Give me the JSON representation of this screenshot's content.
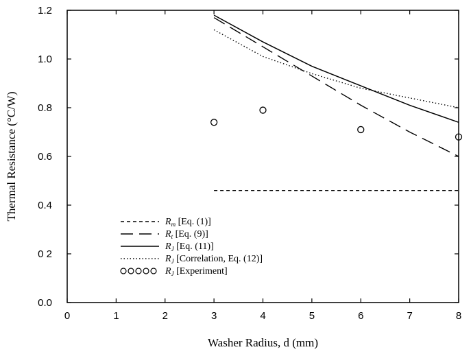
{
  "chart_data": {
    "type": "line",
    "title": "",
    "xlabel": "Washer Radius, d (mm)",
    "ylabel": "Thermal Resistance (°C/W)",
    "xlim": [
      0,
      8
    ],
    "ylim": [
      0,
      1.2
    ],
    "xticks": [
      0,
      1,
      2,
      3,
      4,
      5,
      6,
      7,
      8
    ],
    "xtick_labels": [
      "0",
      "1",
      "2",
      "3",
      "4",
      "5",
      "6",
      "7",
      "8"
    ],
    "yticks": [
      0.0,
      0.2,
      0.4,
      0.6,
      0.8,
      1.0,
      1.2
    ],
    "ytick_labels": [
      "0.0",
      "0 2",
      "0.4",
      "0.6",
      "0.8",
      "1.0",
      "1.2"
    ],
    "grid": false,
    "legend_position": "bottom-left",
    "series": [
      {
        "name": "Rm [Eq. (1)]",
        "symbol": "R",
        "subscript": "m",
        "label": "[Eq. (1)]",
        "style": "short-dash",
        "x": [
          3,
          8
        ],
        "y": [
          0.46,
          0.46
        ]
      },
      {
        "name": "Rt [Eq. (9)]",
        "symbol": "R",
        "subscript": "t",
        "label": "[Eq. (9)]",
        "style": "long-dash",
        "x": [
          3,
          4,
          5,
          6,
          7,
          8
        ],
        "y": [
          1.17,
          1.05,
          0.93,
          0.81,
          0.7,
          0.6
        ]
      },
      {
        "name": "RJ [Eq. (11)]",
        "symbol": "R",
        "subscript": "J",
        "label": "[Eq. (11)]",
        "style": "solid",
        "x": [
          3,
          4,
          5,
          6,
          7,
          8
        ],
        "y": [
          1.18,
          1.07,
          0.97,
          0.89,
          0.81,
          0.74
        ]
      },
      {
        "name": "RJ [Correlation, Eq. (12)]",
        "symbol": "R",
        "subscript": "J",
        "label": "[Correlation, Eq. (12)]",
        "style": "dotted",
        "x": [
          3,
          4,
          5,
          6,
          7,
          8
        ],
        "y": [
          1.12,
          1.01,
          0.94,
          0.88,
          0.84,
          0.8
        ]
      },
      {
        "name": "RJ [Experiment]",
        "symbol": "R",
        "subscript": "J",
        "label": "[Experiment]",
        "style": "markers",
        "x": [
          3,
          4,
          6,
          8
        ],
        "y": [
          0.74,
          0.79,
          0.71,
          0.68
        ]
      }
    ]
  }
}
